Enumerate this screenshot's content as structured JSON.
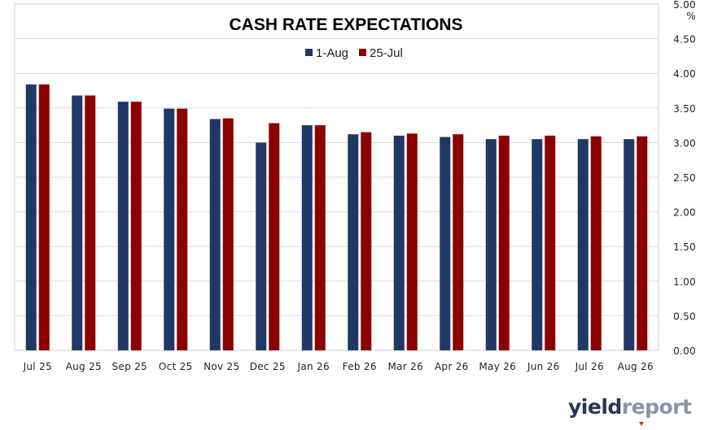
{
  "chart_data": {
    "type": "bar",
    "title": "CASH RATE EXPECTATIONS",
    "y_unit": "%",
    "ylim": [
      0,
      5
    ],
    "yticks": [
      "0.00",
      "0.50",
      "1.00",
      "1.50",
      "2.00",
      "2.50",
      "3.00",
      "3.50",
      "4.00",
      "4.50",
      "5.00"
    ],
    "y_axis_position": "right",
    "grid": true,
    "legend_position": "top-center",
    "categories": [
      "Jul 25",
      "Aug 25",
      "Sep 25",
      "Oct 25",
      "Nov 25",
      "Dec 25",
      "Jan 26",
      "Feb 26",
      "Mar 26",
      "Apr 26",
      "May 26",
      "Jun 26",
      "Jul 26",
      "Aug 26"
    ],
    "series": [
      {
        "name": "1-Aug",
        "color": "#203864",
        "values": [
          3.84,
          3.68,
          3.59,
          3.49,
          3.34,
          3.0,
          3.25,
          3.12,
          3.1,
          3.08,
          3.05,
          3.05,
          3.05,
          3.05
        ]
      },
      {
        "name": "25-Jul",
        "color": "#8b0000",
        "values": [
          3.84,
          3.68,
          3.59,
          3.49,
          3.35,
          3.28,
          3.25,
          3.15,
          3.13,
          3.12,
          3.1,
          3.1,
          3.09,
          3.09
        ]
      }
    ]
  },
  "logo": {
    "part1": "yield",
    "part2": "report"
  }
}
